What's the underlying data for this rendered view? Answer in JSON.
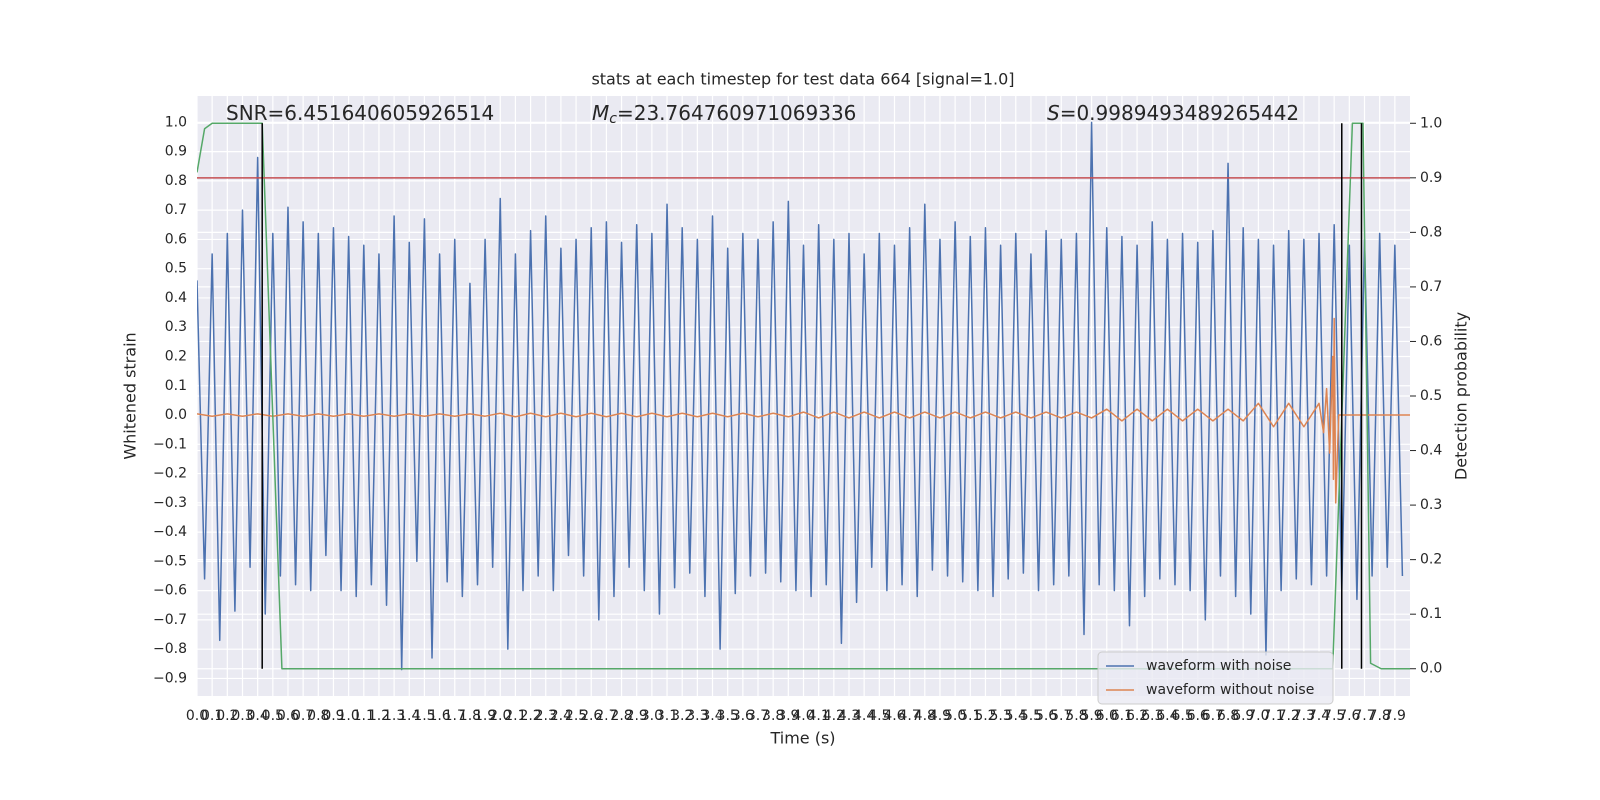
{
  "chart_data": {
    "type": "line",
    "title": "stats at each timestep for test data 664 [signal=1.0]",
    "xlabel": "Time (s)",
    "ylabel": "Whitened strain",
    "y2label": "Detection probability",
    "xlim": [
      0,
      8.0
    ],
    "ylim": [
      -0.96,
      1.09
    ],
    "y2lim": [
      -0.05,
      1.05
    ],
    "grid": true,
    "legend": "lower right",
    "xticks": [
      {
        "value": 0,
        "label": "0.0"
      },
      0.1,
      0.2,
      0.3,
      0.4,
      0.5,
      0.6,
      0.7,
      0.8,
      0.9,
      {
        "value": 1,
        "label": "1.0"
      },
      1.1,
      1.2,
      1.3,
      1.4,
      1.5,
      1.6,
      1.7,
      1.8,
      1.9,
      {
        "value": 2,
        "label": "2.0"
      },
      2.1,
      2.2,
      2.3,
      2.4,
      2.5,
      2.6,
      2.7,
      2.8,
      2.9,
      {
        "value": 3,
        "label": "3.0"
      },
      3.1,
      3.2,
      3.3,
      3.4,
      3.5,
      3.6,
      3.7,
      3.8,
      3.9,
      {
        "value": 4,
        "label": "4.0"
      },
      4.1,
      4.2,
      4.3,
      4.4,
      4.5,
      4.6,
      4.7,
      4.8,
      4.9,
      {
        "value": 5,
        "label": "5.0"
      },
      5.1,
      5.2,
      5.3,
      5.4,
      5.5,
      5.6,
      5.7,
      5.8,
      5.9,
      {
        "value": 6,
        "label": "6.0"
      },
      6.1,
      6.2,
      6.3,
      6.4,
      6.5,
      6.6,
      6.7,
      6.8,
      6.9,
      {
        "value": 7,
        "label": "7.0"
      },
      7.1,
      7.2,
      7.3,
      7.4,
      7.5,
      7.6,
      7.7,
      7.8,
      7.9
    ],
    "yticks": [
      {
        "value": -0.9,
        "label": "−0.9"
      },
      {
        "value": -0.8,
        "label": "−0.8"
      },
      {
        "value": -0.7,
        "label": "−0.7"
      },
      {
        "value": -0.6,
        "label": "−0.6"
      },
      {
        "value": -0.5,
        "label": "−0.5"
      },
      {
        "value": -0.4,
        "label": "−0.4"
      },
      {
        "value": -0.3,
        "label": "−0.3"
      },
      {
        "value": -0.2,
        "label": "−0.2"
      },
      {
        "value": -0.1,
        "label": "−0.1"
      },
      {
        "value": 0,
        "label": "0.0"
      },
      0.1,
      0.2,
      0.3,
      0.4,
      0.5,
      0.6,
      0.7,
      0.8,
      0.9,
      {
        "value": 1,
        "label": "1.0"
      }
    ],
    "y2ticks": [
      {
        "value": 0,
        "label": "0.0"
      },
      0.1,
      0.2,
      0.3,
      0.4,
      0.5,
      0.6,
      0.7,
      0.8,
      0.9,
      {
        "value": 1,
        "label": "1.0"
      }
    ],
    "series": [
      {
        "name": "waveform with noise",
        "color": "#4c72b0",
        "x": [
          0,
          0.05,
          0.1,
          0.15,
          0.2,
          0.25,
          0.3,
          0.35,
          0.4,
          0.45,
          0.5,
          0.55,
          0.6,
          0.65,
          0.7,
          0.75,
          0.8,
          0.85,
          0.9,
          0.95,
          1,
          1.05,
          1.1,
          1.15,
          1.2,
          1.25,
          1.3,
          1.35,
          1.4,
          1.45,
          1.5,
          1.55,
          1.6,
          1.65,
          1.7,
          1.75,
          1.8,
          1.85,
          1.9,
          1.95,
          2,
          2.05,
          2.1,
          2.15,
          2.2,
          2.25,
          2.3,
          2.35,
          2.4,
          2.45,
          2.5,
          2.55,
          2.6,
          2.65,
          2.7,
          2.75,
          2.8,
          2.85,
          2.9,
          2.95,
          3,
          3.05,
          3.1,
          3.15,
          3.2,
          3.25,
          3.3,
          3.35,
          3.4,
          3.45,
          3.5,
          3.55,
          3.6,
          3.65,
          3.7,
          3.75,
          3.8,
          3.85,
          3.9,
          3.95,
          4,
          4.05,
          4.1,
          4.15,
          4.2,
          4.25,
          4.3,
          4.35,
          4.4,
          4.45,
          4.5,
          4.55,
          4.6,
          4.65,
          4.7,
          4.75,
          4.8,
          4.85,
          4.9,
          4.95,
          5,
          5.05,
          5.1,
          5.15,
          5.2,
          5.25,
          5.3,
          5.35,
          5.4,
          5.45,
          5.5,
          5.55,
          5.6,
          5.65,
          5.7,
          5.75,
          5.8,
          5.85,
          5.9,
          5.95,
          6,
          6.05,
          6.1,
          6.15,
          6.2,
          6.25,
          6.3,
          6.35,
          6.4,
          6.45,
          6.5,
          6.55,
          6.6,
          6.65,
          6.7,
          6.75,
          6.8,
          6.85,
          6.9,
          6.95,
          7,
          7.05,
          7.1,
          7.15,
          7.2,
          7.25,
          7.3,
          7.35,
          7.4,
          7.45,
          7.5,
          7.55,
          7.6,
          7.65,
          7.7,
          7.75,
          7.8,
          7.85,
          7.9,
          7.95
        ],
        "values": [
          0.46,
          -0.56,
          0.55,
          -0.77,
          0.62,
          -0.67,
          0.7,
          -0.52,
          0.88,
          -0.68,
          0.62,
          -0.55,
          0.71,
          -0.58,
          0.66,
          -0.6,
          0.62,
          -0.48,
          0.64,
          -0.6,
          0.61,
          -0.62,
          0.58,
          -0.58,
          0.55,
          -0.65,
          0.68,
          -0.87,
          0.59,
          -0.5,
          0.67,
          -0.83,
          0.55,
          -0.57,
          0.6,
          -0.62,
          0.45,
          -0.58,
          0.6,
          -0.52,
          0.74,
          -0.8,
          0.55,
          -0.6,
          0.63,
          -0.55,
          0.68,
          -0.6,
          0.57,
          -0.48,
          0.6,
          -0.55,
          0.64,
          -0.7,
          0.66,
          -0.62,
          0.59,
          -0.52,
          0.65,
          -0.6,
          0.62,
          -0.68,
          0.72,
          -0.59,
          0.64,
          -0.54,
          0.6,
          -0.62,
          0.68,
          -0.8,
          0.57,
          -0.61,
          0.62,
          -0.55,
          0.6,
          -0.54,
          0.66,
          -0.57,
          0.73,
          -0.6,
          0.58,
          -0.62,
          0.65,
          -0.58,
          0.6,
          -0.78,
          0.62,
          -0.64,
          0.55,
          -0.52,
          0.62,
          -0.6,
          0.58,
          -0.58,
          0.64,
          -0.62,
          0.72,
          -0.53,
          0.6,
          -0.55,
          0.66,
          -0.57,
          0.61,
          -0.6,
          0.64,
          -0.62,
          0.58,
          -0.56,
          0.62,
          -0.54,
          0.55,
          -0.6,
          0.63,
          -0.58,
          0.6,
          -0.55,
          0.62,
          -0.75,
          1.0,
          -0.58,
          0.64,
          -0.6,
          0.61,
          -0.72,
          0.58,
          -0.62,
          0.66,
          -0.56,
          0.6,
          -0.58,
          0.62,
          -0.6,
          0.59,
          -0.7,
          0.63,
          -0.55,
          0.86,
          -0.62,
          0.64,
          -0.68,
          0.6,
          -0.82,
          0.58,
          -0.6,
          0.63,
          -0.56,
          0.6,
          -0.58,
          0.62,
          -0.55,
          0.65,
          -0.6,
          0.58,
          -0.63,
          0.6,
          -0.55,
          0.62,
          -0.52,
          0.58,
          -0.55
        ]
      },
      {
        "name": "waveform without noise",
        "color": "#dd8452",
        "x": [
          0,
          0.1,
          0.2,
          0.3,
          0.4,
          0.5,
          0.6,
          0.7,
          0.8,
          0.9,
          1,
          1.1,
          1.2,
          1.3,
          1.4,
          1.5,
          1.6,
          1.7,
          1.8,
          1.9,
          2,
          2.1,
          2.2,
          2.3,
          2.4,
          2.5,
          2.6,
          2.7,
          2.8,
          2.9,
          3,
          3.1,
          3.2,
          3.3,
          3.4,
          3.5,
          3.6,
          3.7,
          3.8,
          3.9,
          4,
          4.1,
          4.2,
          4.3,
          4.4,
          4.5,
          4.6,
          4.7,
          4.8,
          4.9,
          5,
          5.1,
          5.2,
          5.3,
          5.4,
          5.5,
          5.6,
          5.7,
          5.8,
          5.9,
          6,
          6.1,
          6.2,
          6.3,
          6.4,
          6.5,
          6.6,
          6.7,
          6.8,
          6.9,
          7,
          7.1,
          7.2,
          7.3,
          7.4,
          7.43,
          7.45,
          7.47,
          7.49,
          7.495,
          7.5,
          7.51,
          7.53,
          8.0
        ],
        "values": [
          0.004,
          -0.004,
          0.004,
          -0.004,
          0.004,
          -0.004,
          0.004,
          -0.004,
          0.004,
          -0.004,
          0.004,
          -0.004,
          0.004,
          -0.004,
          0.004,
          -0.004,
          0.004,
          -0.004,
          0.004,
          -0.004,
          0.006,
          -0.006,
          0.006,
          -0.006,
          0.006,
          -0.006,
          0.006,
          -0.006,
          0.006,
          -0.006,
          0.006,
          -0.006,
          0.006,
          -0.006,
          0.006,
          -0.006,
          0.006,
          -0.006,
          0.006,
          -0.006,
          0.01,
          -0.01,
          0.01,
          -0.01,
          0.01,
          -0.01,
          0.01,
          -0.01,
          0.01,
          -0.01,
          0.01,
          -0.01,
          0.01,
          -0.01,
          0.01,
          -0.01,
          0.01,
          -0.01,
          0.01,
          -0.01,
          0.02,
          -0.02,
          0.02,
          -0.02,
          0.02,
          -0.02,
          0.02,
          -0.02,
          0.02,
          -0.02,
          0.04,
          -0.04,
          0.04,
          -0.04,
          0.04,
          -0.06,
          0.09,
          -0.13,
          0.2,
          -0.22,
          0.33,
          -0.3,
          0,
          0
        ]
      },
      {
        "color": "#55a868",
        "axis": "y2",
        "x": [
          0,
          0.05,
          0.1,
          0.43,
          0.56,
          7.49,
          7.62,
          7.69,
          7.74,
          7.81,
          8.0
        ],
        "values": [
          0.91,
          0.99,
          1.0,
          1.0,
          0.0,
          0.0,
          1.0,
          1.0,
          0.01,
          0.0,
          0.0
        ]
      }
    ],
    "hline": {
      "value": 0.9,
      "axis": "y2",
      "color": "#c44e52"
    },
    "vlines": {
      "x": [
        0.43,
        7.55,
        7.68
      ],
      "ymin": 0,
      "ymax": 1,
      "axis": "y2",
      "color": "#000000"
    },
    "annotations": [
      {
        "text": "SNR=6.451640605926514"
      },
      {
        "symbol": "M",
        "subscript": "c",
        "text": "=23.764760971069336"
      },
      {
        "symbol": "S",
        "text": "=0.9989493489265442"
      }
    ]
  }
}
